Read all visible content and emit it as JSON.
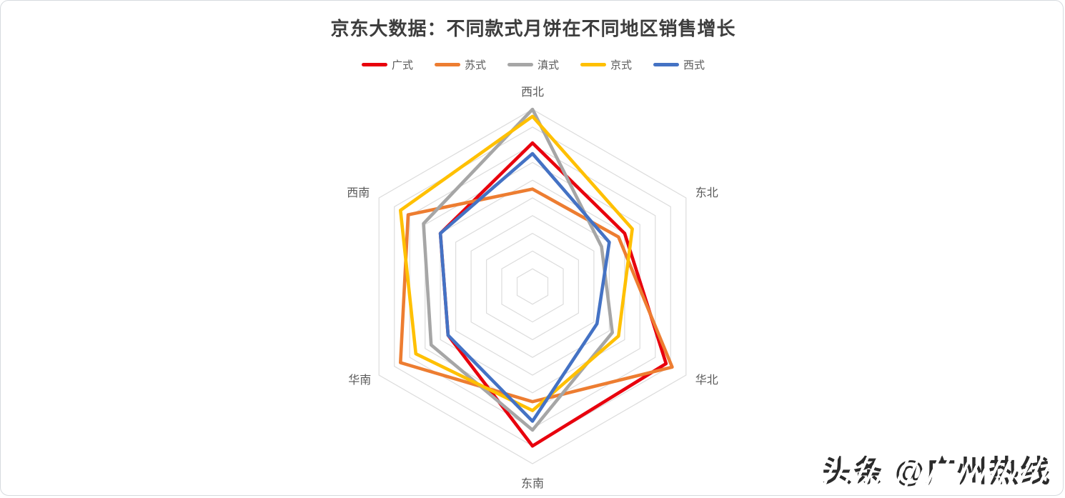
{
  "title": "京东大数据：不同款式月饼在不同地区销售增长",
  "watermark": "头条 @广州热线",
  "chart_data": {
    "type": "radar",
    "title": "京东大数据：不同款式月饼在不同地区销售增长",
    "categories": [
      "西北",
      "东北",
      "华北",
      "东南",
      "华南",
      "西南"
    ],
    "series": [
      {
        "name": "广式",
        "color": "#e8000d",
        "values": [
          8.1,
          6.0,
          8.7,
          9.0,
          5.5,
          6.0
        ]
      },
      {
        "name": "苏式",
        "color": "#ed7d31",
        "values": [
          5.5,
          5.6,
          9.1,
          6.5,
          8.6,
          8.1
        ]
      },
      {
        "name": "滇式",
        "color": "#a6a6a6",
        "values": [
          10.0,
          4.5,
          5.2,
          8.1,
          6.6,
          7.1
        ]
      },
      {
        "name": "京式",
        "color": "#ffc000",
        "values": [
          9.6,
          6.5,
          5.6,
          7.0,
          7.6,
          8.6
        ]
      },
      {
        "name": "西式",
        "color": "#4472c4",
        "values": [
          7.5,
          5.0,
          4.2,
          7.6,
          5.5,
          6.0
        ]
      }
    ],
    "rmax": 10,
    "ring_count": 10,
    "grid": true,
    "grid_color": "#dcdcdc",
    "label_color": "#595959",
    "legend_position": "top",
    "axis_tick_labels_visible": false
  }
}
